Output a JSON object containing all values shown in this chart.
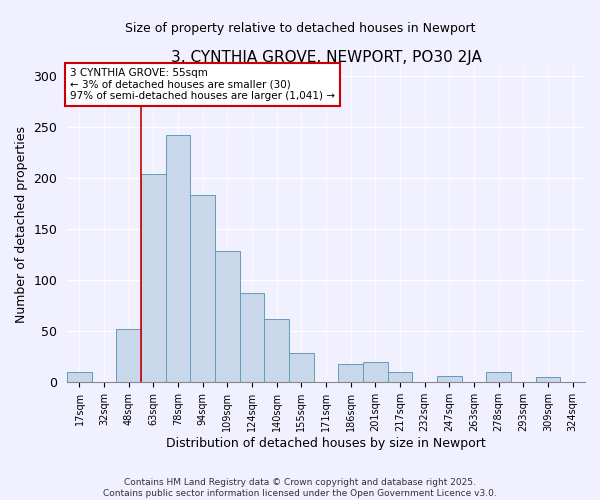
{
  "title": "3, CYNTHIA GROVE, NEWPORT, PO30 2JA",
  "subtitle": "Size of property relative to detached houses in Newport",
  "xlabel": "Distribution of detached houses by size in Newport",
  "ylabel": "Number of detached properties",
  "bar_labels": [
    "17sqm",
    "32sqm",
    "48sqm",
    "63sqm",
    "78sqm",
    "94sqm",
    "109sqm",
    "124sqm",
    "140sqm",
    "155sqm",
    "171sqm",
    "186sqm",
    "201sqm",
    "217sqm",
    "232sqm",
    "247sqm",
    "263sqm",
    "278sqm",
    "293sqm",
    "309sqm",
    "324sqm"
  ],
  "bar_values": [
    10,
    0,
    52,
    204,
    243,
    184,
    129,
    88,
    62,
    29,
    0,
    18,
    20,
    10,
    0,
    6,
    0,
    10,
    0,
    5,
    0
  ],
  "bar_color": "#c8d8ea",
  "bar_edge_color": "#6699bb",
  "vline_x": 2.5,
  "vline_color": "#cc0000",
  "annotation_title": "3 CYNTHIA GROVE: 55sqm",
  "annotation_line1": "← 3% of detached houses are smaller (30)",
  "annotation_line2": "97% of semi-detached houses are larger (1,041) →",
  "annotation_box_color": "#cc0000",
  "annotation_bg": "#ffffff",
  "ylim": [
    0,
    310
  ],
  "yticks": [
    0,
    50,
    100,
    150,
    200,
    250,
    300
  ],
  "footer1": "Contains HM Land Registry data © Crown copyright and database right 2025.",
  "footer2": "Contains public sector information licensed under the Open Government Licence v3.0.",
  "background_color": "#f0f0ff",
  "grid_color": "#ffffff"
}
